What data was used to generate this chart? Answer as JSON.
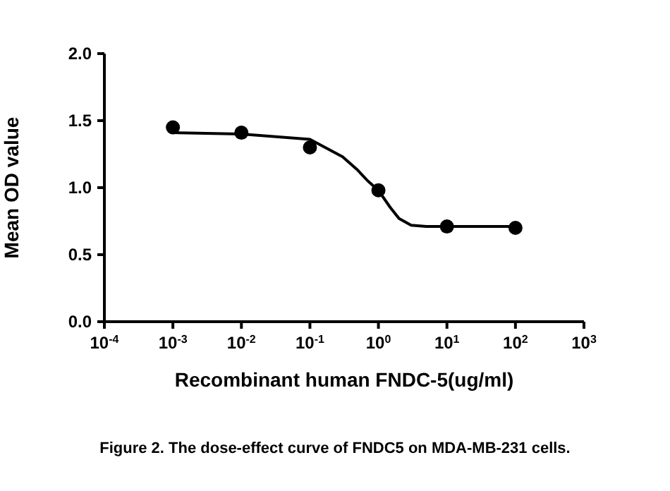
{
  "chart_data": {
    "type": "scatter",
    "xlabel": "Recombinant human FNDC-5(ug/ml)",
    "ylabel": "Mean OD value",
    "annotations": [
      "Figure 2. The dose-effect curve of FNDC5 on MDA-MB-231 cells."
    ],
    "log": "x",
    "marker": "circle",
    "xlim": [
      0.0001,
      1000
    ],
    "xticks": [
      {
        "value": 0.0001,
        "label": "10$^{-4}$"
      },
      {
        "value": 0.001,
        "label": "10$^{-3}$"
      },
      {
        "value": 0.01,
        "label": "10$^{-2}$"
      },
      {
        "value": 0.1,
        "label": "10$^{-1}$"
      },
      {
        "value": 1,
        "label": "10$^{0}$"
      },
      {
        "value": 10,
        "label": "10$^{1}$"
      },
      {
        "value": 100,
        "label": "10$^{2}$"
      },
      {
        "value": 1000,
        "label": "10$^{3}$"
      }
    ],
    "ylim": [
      0,
      2
    ],
    "yticks": [
      {
        "value": 0,
        "label": "0.0"
      },
      {
        "value": 0.5,
        "label": "0.5"
      },
      {
        "value": 1,
        "label": "1.0"
      },
      {
        "value": 1.5,
        "label": "1.5"
      },
      {
        "value": 2,
        "label": "2.0"
      }
    ],
    "series": [
      {
        "color": "#000000",
        "x": [
          0.001,
          0.01,
          0.1,
          1,
          10,
          100
        ],
        "values": [
          1.45,
          1.41,
          1.3,
          0.98,
          0.71,
          0.7
        ]
      },
      {
        "type": "line",
        "color": "#000000",
        "marker": "none",
        "line_style": "solid",
        "x": [
          0.001,
          0.01,
          0.1,
          0.3,
          0.5,
          0.7,
          1,
          1.5,
          2,
          3,
          5,
          10,
          100
        ],
        "values": [
          1.41,
          1.4,
          1.36,
          1.23,
          1.13,
          1.05,
          0.98,
          0.85,
          0.77,
          0.72,
          0.71,
          0.71,
          0.71
        ]
      }
    ]
  }
}
